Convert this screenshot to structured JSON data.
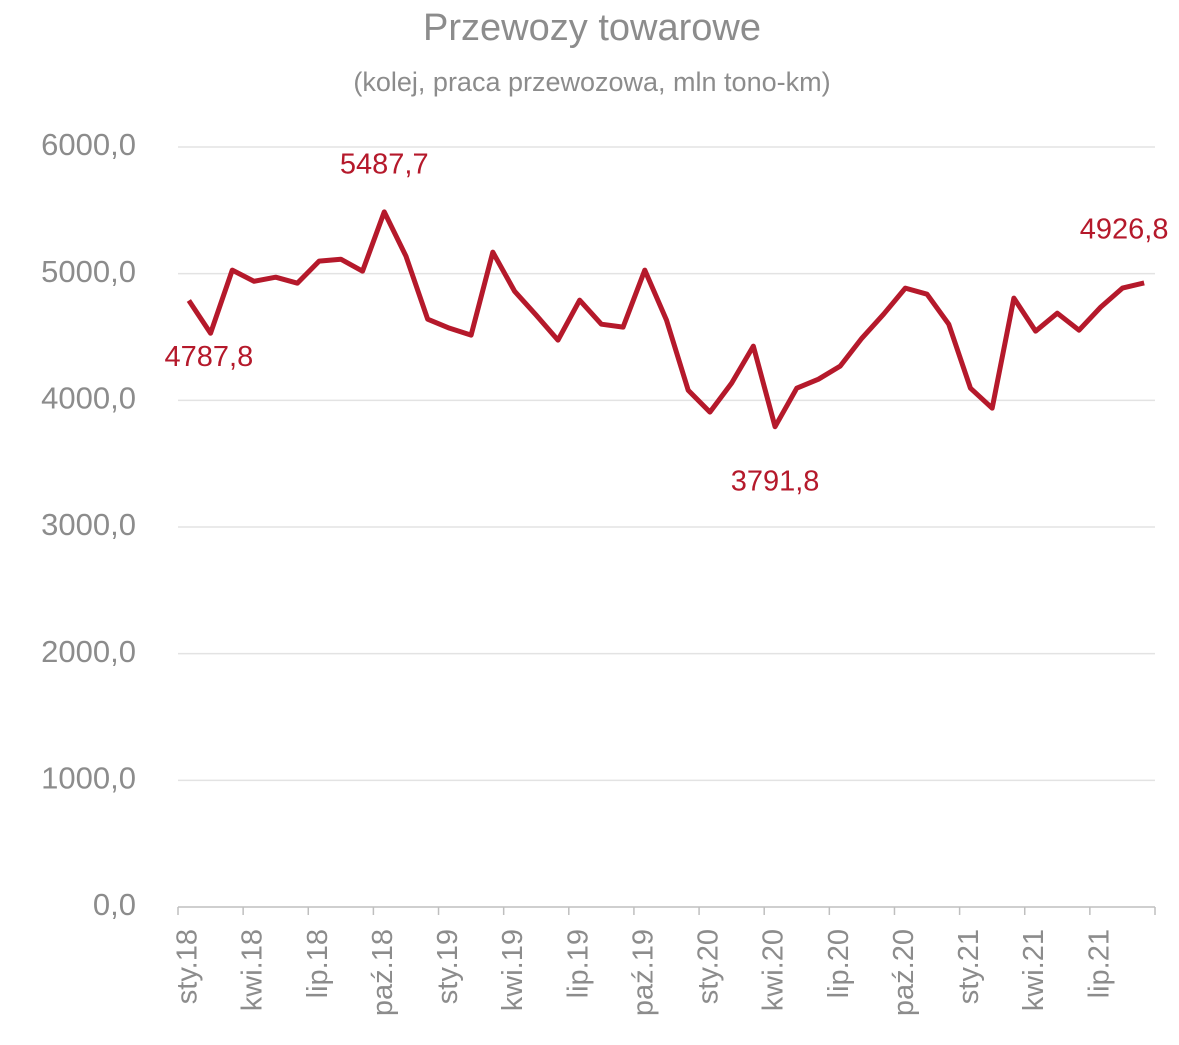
{
  "chart_data": {
    "type": "line",
    "title": "Przewozy towarowe",
    "subtitle": "(kolej, praca przewozowa, mln tono-km)",
    "categories": [
      "sty.18",
      null,
      null,
      "kwi.18",
      null,
      null,
      "lip.18",
      null,
      null,
      "paź.18",
      null,
      null,
      "sty.19",
      null,
      null,
      "kwi.19",
      null,
      null,
      "lip.19",
      null,
      null,
      "paź.19",
      null,
      null,
      "sty.20",
      null,
      null,
      "kwi.20",
      null,
      null,
      "lip.20",
      null,
      null,
      "paź.20",
      null,
      null,
      "sty.21",
      null,
      null,
      "kwi.21",
      null,
      null,
      "lip.21",
      null,
      null
    ],
    "series": [
      {
        "name": "Przewozy towarowe",
        "color": "#b5192b",
        "values": [
          4787.8,
          4530,
          5028,
          4940,
          4972,
          4925,
          5099,
          5114,
          5020,
          5487.7,
          5138,
          4641,
          4570,
          4515,
          5170,
          4862,
          4672,
          4475,
          4791,
          4601,
          4578,
          5028,
          4633,
          4080,
          3907,
          4136,
          4428,
          3791.8,
          4096,
          4167,
          4270,
          4491,
          4680,
          4886,
          4838,
          4601,
          4096,
          3938,
          4807,
          4546,
          4688,
          4554,
          4736,
          4886,
          4926.8
        ],
        "value_labels": [
          "4787,8",
          null,
          null,
          null,
          null,
          null,
          null,
          null,
          null,
          "5487,7",
          null,
          null,
          null,
          null,
          null,
          null,
          null,
          null,
          null,
          null,
          null,
          null,
          null,
          null,
          null,
          null,
          null,
          "3791,8",
          null,
          null,
          null,
          null,
          null,
          null,
          null,
          null,
          null,
          null,
          null,
          null,
          null,
          null,
          null,
          null,
          "4926,8"
        ]
      }
    ],
    "ylim": [
      0,
      6000
    ],
    "yticks": [
      {
        "value": 0,
        "label": "0,0"
      },
      {
        "value": 1000,
        "label": "1000,0"
      },
      {
        "value": 2000,
        "label": "2000,0"
      },
      {
        "value": 3000,
        "label": "3000,0"
      },
      {
        "value": 4000,
        "label": "4000,0"
      },
      {
        "value": 5000,
        "label": "5000,0"
      },
      {
        "value": 6000,
        "label": "6000,0"
      }
    ],
    "grid": true
  }
}
